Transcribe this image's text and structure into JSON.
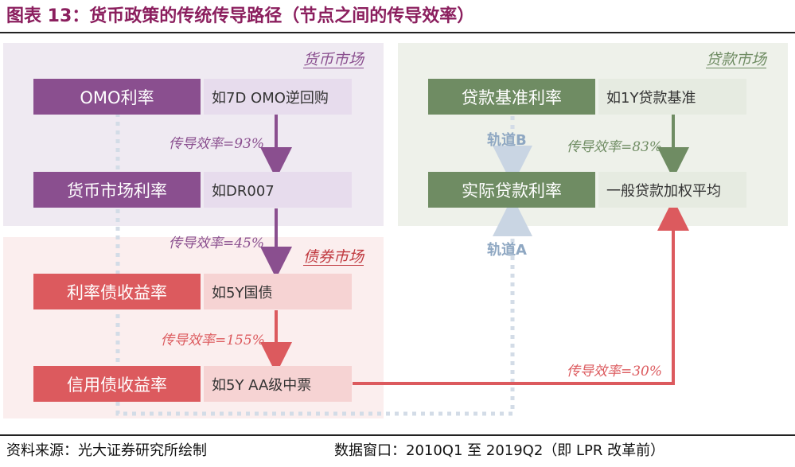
{
  "title": "图表 13：货币政策的传统传导路径（节点之间的传导效率）",
  "regions": {
    "money_market": "货币市场",
    "bond_market": "债券市场",
    "loan_market": "贷款市场"
  },
  "nodes": {
    "omo": {
      "label": "OMO利率",
      "note": "如7D OMO逆回购"
    },
    "money_rate": {
      "label": "货币市场利率",
      "note": "如DR007"
    },
    "bond_yield": {
      "label": "利率债收益率",
      "note": "如5Y国债"
    },
    "credit_yield": {
      "label": "信用债收益率",
      "note": "如5Y AA级中票"
    },
    "loan_base": {
      "label": "贷款基准利率",
      "note": "如1Y贷款基准"
    },
    "actual_loan": {
      "label": "实际贷款利率",
      "note": "一般贷款加权平均"
    }
  },
  "efficiency": {
    "omo_to_money": "传导效率=93%",
    "money_to_bond": "传导效率=45%",
    "bond_to_credit": "传导效率=155%",
    "base_to_actual": "传导效率=83%",
    "credit_to_actual": "传导效率=30%"
  },
  "tracks": {
    "b": "轨道B",
    "a": "轨道A"
  },
  "footer": {
    "source": "资料来源：光大证券研究所绘制",
    "window": "数据窗口：2010Q1 至 2019Q2（即 LPR 改革前）"
  },
  "colors": {
    "title": "#8b1f5e",
    "purple": "#8a4f8f",
    "purple_light": "#e7dced",
    "red": "#dc5a5e",
    "red_light": "#f6d3d3",
    "green": "#6f8c63",
    "green_light": "#e6ebe1",
    "track_blue": "#8ea7c2"
  }
}
